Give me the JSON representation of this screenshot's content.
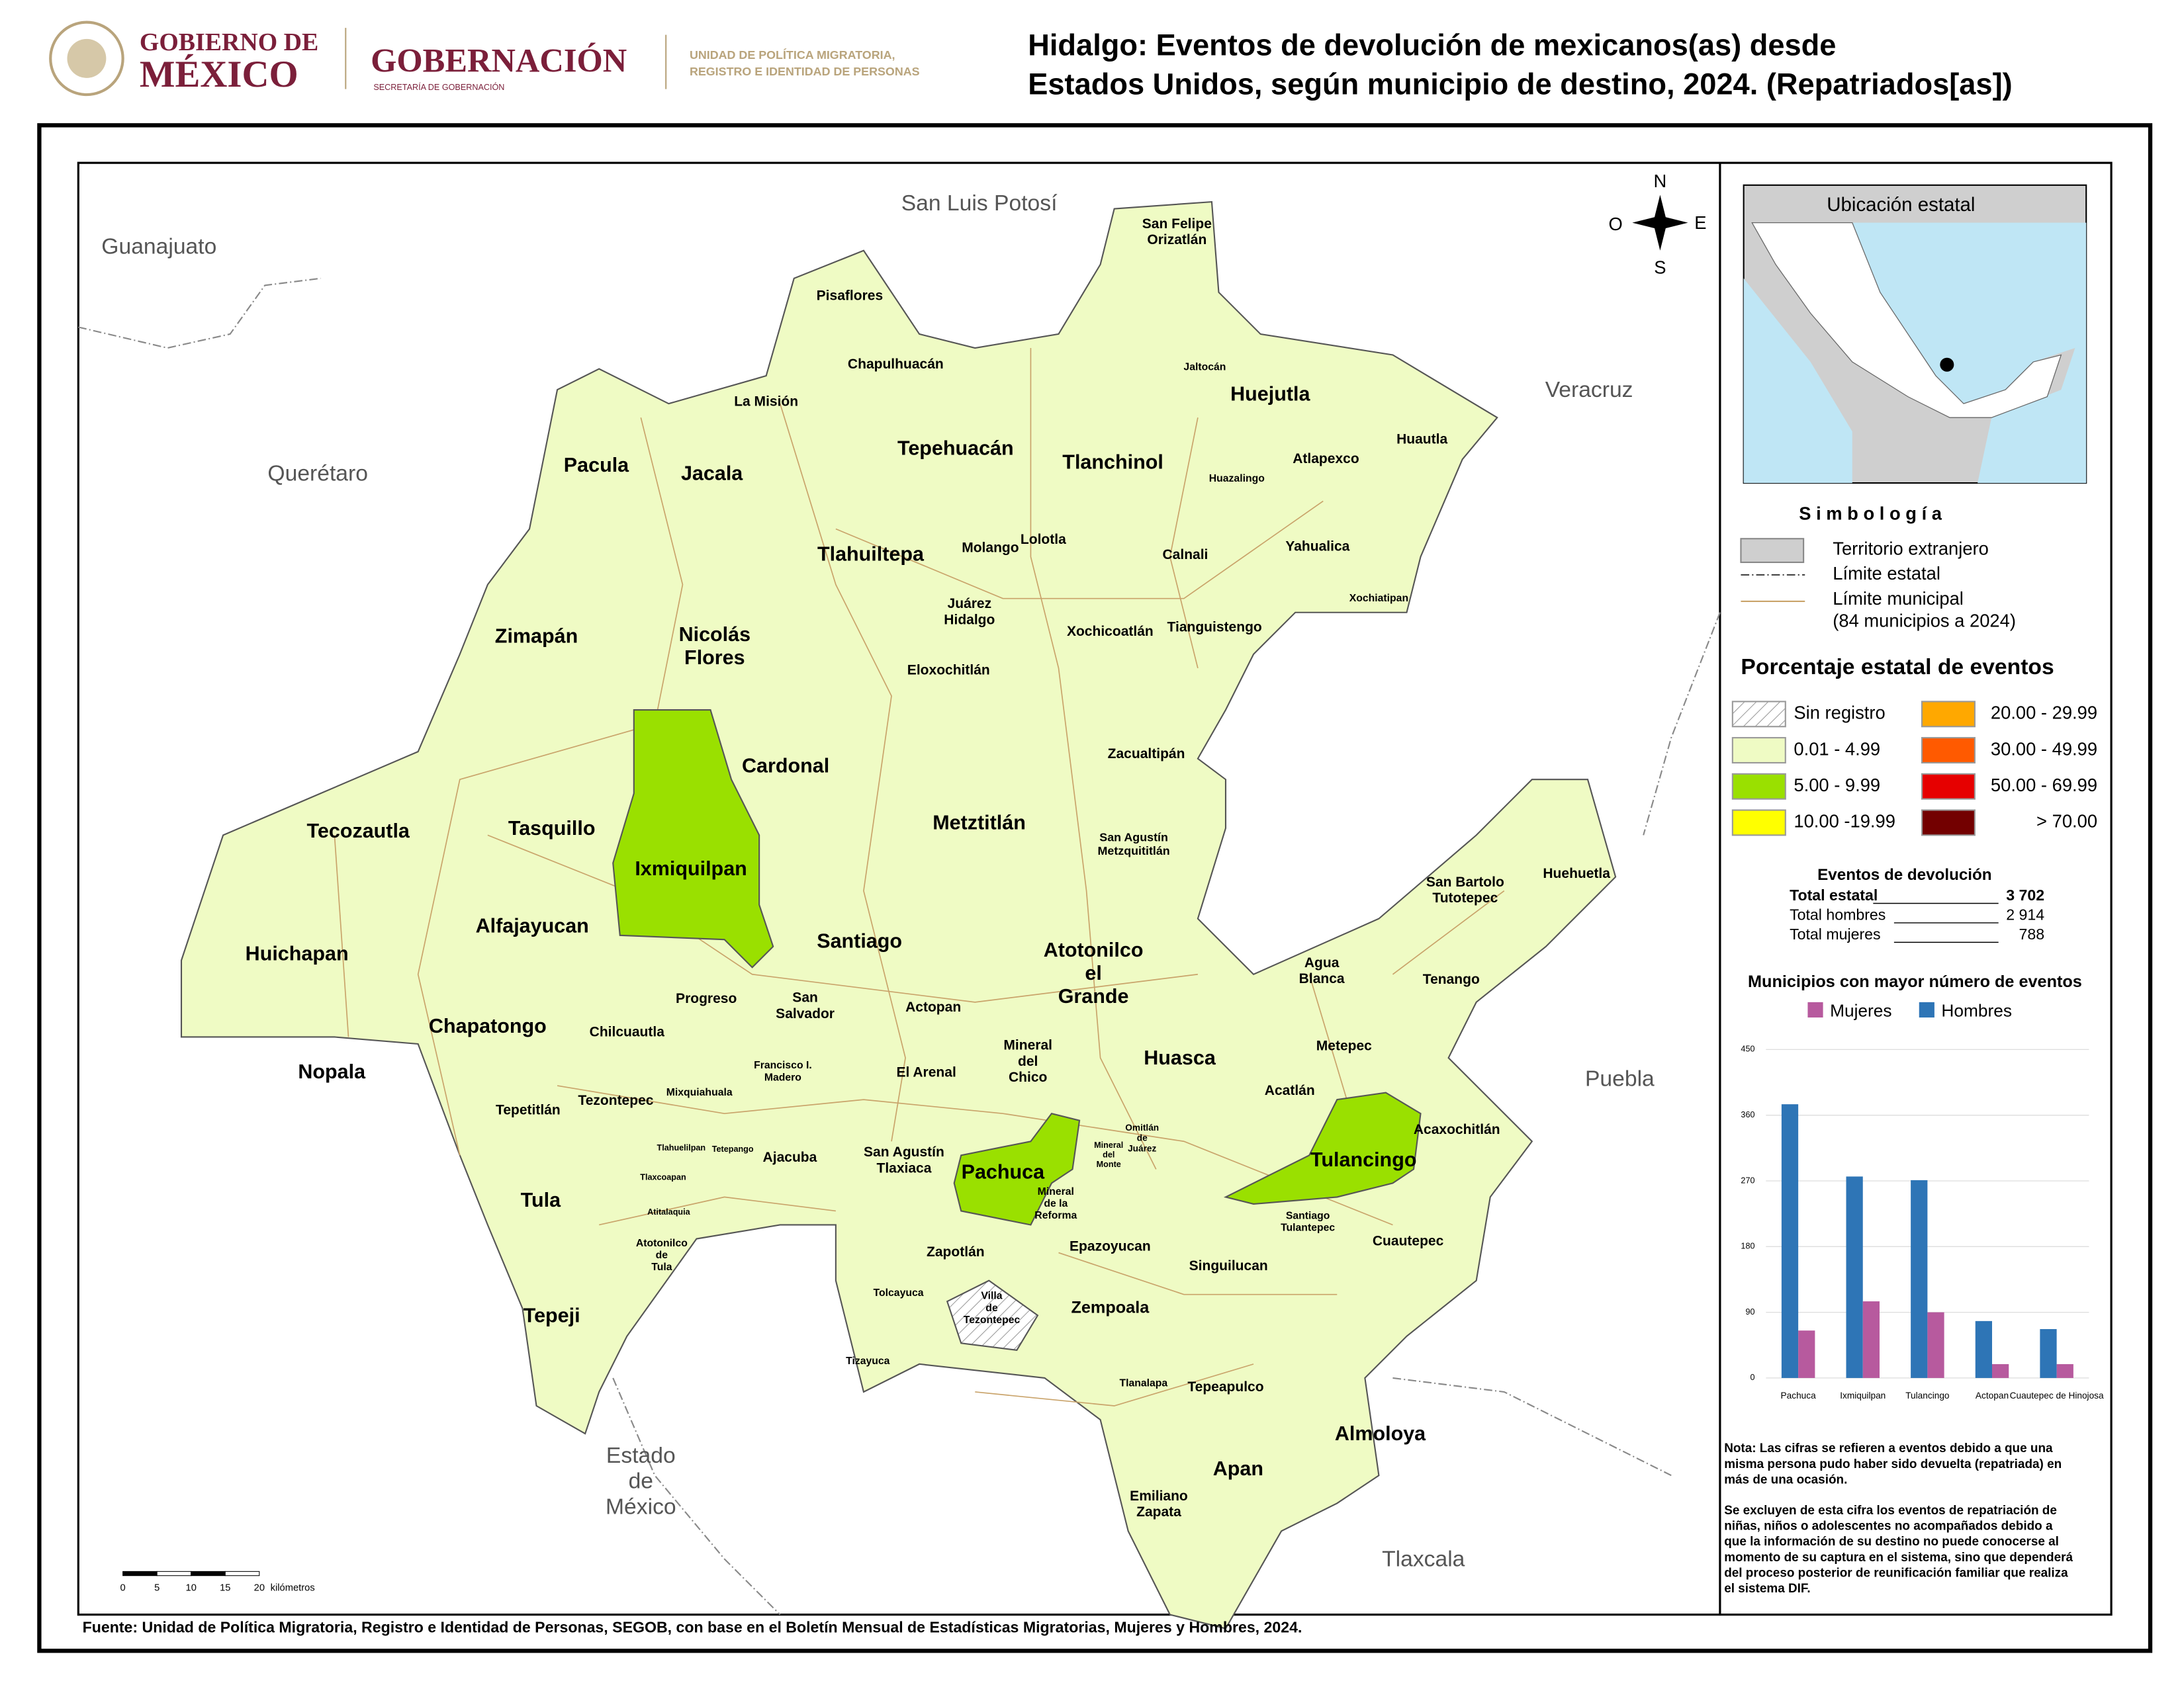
{
  "header": {
    "gov_line1": "GOBIERNO DE",
    "gov_line2": "MÉXICO",
    "gob": "GOBERNACIÓN",
    "gob_sub": "SECRETARÍA DE GOBERNACIÓN",
    "unit_lines": [
      "UNIDAD DE POLÍTICA MIGRATORIA,",
      "REGISTRO E IDENTIDAD DE PERSONAS"
    ],
    "title_lines": [
      "Hidalgo: Eventos de devolución de mexicanos(as) desde",
      "Estados Unidos, según municipio de destino, 2024. (Repatriados[as])"
    ]
  },
  "map": {
    "neighbors": [
      {
        "lines": [
          "San Luis Potosí"
        ]
      },
      {
        "lines": [
          "Guanajuato"
        ]
      },
      {
        "lines": [
          "Querétaro"
        ]
      },
      {
        "lines": [
          "Veracruz"
        ]
      },
      {
        "lines": [
          "Puebla"
        ]
      },
      {
        "lines": [
          "Estado",
          "de",
          "México"
        ]
      },
      {
        "lines": [
          "Tlaxcala"
        ]
      }
    ],
    "municipalities": [
      {
        "lines": [
          "San Felipe",
          "Orizatlán"
        ]
      },
      {
        "lines": [
          "Pisaflores"
        ]
      },
      {
        "lines": [
          "Chapulhuacán"
        ]
      },
      {
        "lines": [
          "La Misión"
        ]
      },
      {
        "lines": [
          "Jaltocán"
        ]
      },
      {
        "lines": [
          "Huejutla"
        ]
      },
      {
        "lines": [
          "Huautla"
        ]
      },
      {
        "lines": [
          "Pacula"
        ]
      },
      {
        "lines": [
          "Jacala"
        ]
      },
      {
        "lines": [
          "Tepehuacán"
        ]
      },
      {
        "lines": [
          "Tlanchinol"
        ]
      },
      {
        "lines": [
          "Atlapexco"
        ]
      },
      {
        "lines": [
          "Huazalingo"
        ]
      },
      {
        "lines": [
          "Molango"
        ]
      },
      {
        "lines": [
          "Lolotla"
        ]
      },
      {
        "lines": [
          "Tlahuiltepa"
        ]
      },
      {
        "lines": [
          "Calnali"
        ]
      },
      {
        "lines": [
          "Yahualica"
        ]
      },
      {
        "lines": [
          "Xochiatipan"
        ]
      },
      {
        "lines": [
          "Juárez",
          "Hidalgo"
        ]
      },
      {
        "lines": [
          "Xochicoatlán"
        ]
      },
      {
        "lines": [
          "Tianguistengo"
        ]
      },
      {
        "lines": [
          "Zimapán"
        ]
      },
      {
        "lines": [
          "Nicolás",
          "Flores"
        ]
      },
      {
        "lines": [
          "Eloxochitlán"
        ]
      },
      {
        "lines": [
          "Cardonal"
        ]
      },
      {
        "lines": [
          "Zacualtipán"
        ]
      },
      {
        "lines": [
          "Tecozautla"
        ]
      },
      {
        "lines": [
          "Tasquillo"
        ]
      },
      {
        "lines": [
          "Metztitlán"
        ]
      },
      {
        "lines": [
          "San Agustín",
          "Metzquititlán"
        ]
      },
      {
        "lines": [
          "Ixmiquilpan"
        ]
      },
      {
        "lines": [
          "San Bartolo",
          "Tutotepec"
        ]
      },
      {
        "lines": [
          "Huehuetla"
        ]
      },
      {
        "lines": [
          "Alfajayucan"
        ]
      },
      {
        "lines": [
          "Huichapan"
        ]
      },
      {
        "lines": [
          "Santiago"
        ]
      },
      {
        "lines": [
          "Atotonilco",
          "el",
          "Grande"
        ]
      },
      {
        "lines": [
          "Agua",
          "Blanca"
        ]
      },
      {
        "lines": [
          "Tenango"
        ]
      },
      {
        "lines": [
          "Progreso"
        ]
      },
      {
        "lines": [
          "San",
          "Salvador"
        ]
      },
      {
        "lines": [
          "Actopan"
        ]
      },
      {
        "lines": [
          "Chapatongo"
        ]
      },
      {
        "lines": [
          "Chilcuautla"
        ]
      },
      {
        "lines": [
          "Mineral",
          "del",
          "Chico"
        ]
      },
      {
        "lines": [
          "Metepec"
        ]
      },
      {
        "lines": [
          "Huasca"
        ]
      },
      {
        "lines": [
          "Nopala"
        ]
      },
      {
        "lines": [
          "Francisco I.",
          "Madero"
        ]
      },
      {
        "lines": [
          "El Arenal"
        ]
      },
      {
        "lines": [
          "Acatlán"
        ]
      },
      {
        "lines": [
          "Tepetitlán"
        ]
      },
      {
        "lines": [
          "Tezontepec"
        ]
      },
      {
        "lines": [
          "Mixquiahuala"
        ]
      },
      {
        "lines": [
          "Omitlán",
          "de",
          "Juárez"
        ]
      },
      {
        "lines": [
          "Acaxochitlán"
        ]
      },
      {
        "lines": [
          "Tlahuelilpan"
        ]
      },
      {
        "lines": [
          "Tetepango"
        ]
      },
      {
        "lines": [
          "Ajacuba"
        ]
      },
      {
        "lines": [
          "San Agustín",
          "Tlaxiaca"
        ]
      },
      {
        "lines": [
          "Mineral",
          "del",
          "Monte"
        ]
      },
      {
        "lines": [
          "Tulancingo"
        ]
      },
      {
        "lines": [
          "Pachuca"
        ]
      },
      {
        "lines": [
          "Tlaxcoapan"
        ]
      },
      {
        "lines": [
          "Tula"
        ]
      },
      {
        "lines": [
          "Mineral",
          "de la",
          "Reforma"
        ]
      },
      {
        "lines": [
          "Atitalaquia"
        ]
      },
      {
        "lines": [
          "Santiago",
          "Tulantepec"
        ]
      },
      {
        "lines": [
          "Cuautepec"
        ]
      },
      {
        "lines": [
          "Atotonilco",
          "de",
          "Tula"
        ]
      },
      {
        "lines": [
          "Zapotlán"
        ]
      },
      {
        "lines": [
          "Epazoyucan"
        ]
      },
      {
        "lines": [
          "Singuilucan"
        ]
      },
      {
        "lines": [
          "Tolcayuca"
        ]
      },
      {
        "lines": [
          "Villa",
          "de",
          "Tezontepec"
        ]
      },
      {
        "lines": [
          "Tepeji"
        ]
      },
      {
        "lines": [
          "Zempoala"
        ]
      },
      {
        "lines": [
          "Tizayuca"
        ]
      },
      {
        "lines": [
          "Tlanalapa"
        ]
      },
      {
        "lines": [
          "Tepeapulco"
        ]
      },
      {
        "lines": [
          "Almoloya"
        ]
      },
      {
        "lines": [
          "Apan"
        ]
      },
      {
        "lines": [
          "Emiliano",
          "Zapata"
        ]
      }
    ],
    "compass": {
      "n": "N",
      "s": "S",
      "e": "E",
      "o": "O"
    },
    "scale": {
      "ticks": [
        "0",
        "5",
        "10",
        "15",
        "20"
      ],
      "unit": "kilómetros"
    }
  },
  "inset": {
    "title": "Ubicación estatal"
  },
  "legend": {
    "title": "S i m b o l o g í a",
    "items": [
      "Territorio extranjero",
      "Límite estatal",
      "Límite municipal",
      "(84 municipios a 2024)"
    ],
    "pct_title": "Porcentaje estatal de eventos",
    "classes": [
      {
        "label": "Sin registro",
        "color": "hatch"
      },
      {
        "label": "0.01  - 4.99",
        "color": "#effbc4"
      },
      {
        "label": "5.00  - 9.99",
        "color": "#9ae000"
      },
      {
        "label": "10.00 -19.99",
        "color": "#ffff00"
      },
      {
        "label": "20.00 - 29.99",
        "color": "#ffa800"
      },
      {
        "label": "30.00 - 49.99",
        "color": "#ff5a00"
      },
      {
        "label": "50.00 - 69.99",
        "color": "#e60000"
      },
      {
        "label": "> 70.00",
        "color": "#730000"
      }
    ],
    "events_title": "Eventos de devolución",
    "events": [
      {
        "label": "Total estatal",
        "value": "3 702"
      },
      {
        "label": "Total hombres",
        "value": "2 914"
      },
      {
        "label": "Total mujeres",
        "value": "788"
      }
    ]
  },
  "chart_data": {
    "type": "bar",
    "title": "Municipios con mayor número de eventos",
    "categories": [
      "Pachuca",
      "Ixmiquilpan",
      "Tulancingo",
      "Actopan",
      "Cuautepec de Hinojosa"
    ],
    "series": [
      {
        "name": "Mujeres",
        "color": "#b75a9e",
        "values": [
          65,
          105,
          90,
          19,
          19
        ]
      },
      {
        "name": "Hombres",
        "color": "#2e75b6",
        "values": [
          375,
          276,
          271,
          78,
          67
        ]
      }
    ],
    "ylim": [
      0,
      450
    ],
    "yticks": [
      0,
      90,
      180,
      270,
      360,
      450
    ],
    "grid": true
  },
  "notes": [
    {
      "lines": [
        "Nota: Las cifras se refieren a eventos debido a que una",
        "misma persona pudo haber sido devuelta (repatriada) en",
        "más de una ocasión."
      ]
    },
    {
      "lines": [
        "Se excluyen de esta cifra los eventos de repatriación de",
        "niñas, niños o adolescentes no acompañados debido a",
        "que la información de su destino no puede conocerse al",
        "momento de su captura en el sistema, sino que dependerá",
        "del proceso posterior de reunificación familiar que realiza",
        "el sistema DIF."
      ]
    }
  ],
  "source": "Fuente: Unidad de Política Migratoria, Registro e Identidad de Personas, SEGOB, con base en el Boletín Mensual de Estadísticas Migratorias, Mujeres y Hombres, 2024."
}
